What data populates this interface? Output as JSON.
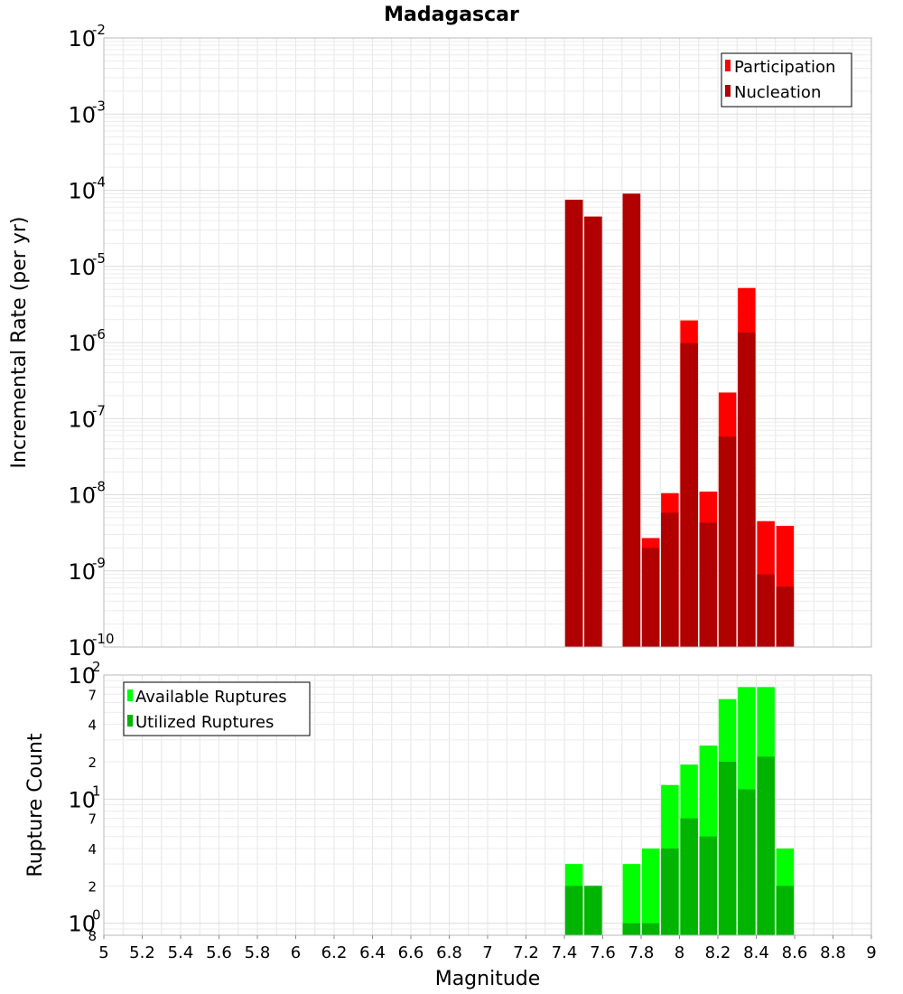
{
  "title": "Madagascar",
  "chart_data": [
    {
      "type": "bar",
      "panel": "top",
      "title": "Madagascar",
      "xlabel": "",
      "ylabel": "Incremental Rate (per yr)",
      "yscale": "log",
      "ylim": [
        1e-10,
        0.01
      ],
      "xlim": [
        5,
        9
      ],
      "y_ticks": [
        {
          "base": "10",
          "exp": "-10",
          "value": 1e-10
        },
        {
          "base": "10",
          "exp": "-9",
          "value": 1e-09
        },
        {
          "base": "10",
          "exp": "-8",
          "value": 1e-08
        },
        {
          "base": "10",
          "exp": "-7",
          "value": 1e-07
        },
        {
          "base": "10",
          "exp": "-6",
          "value": 1e-06
        },
        {
          "base": "10",
          "exp": "-5",
          "value": 1e-05
        },
        {
          "base": "10",
          "exp": "-4",
          "value": 0.0001
        },
        {
          "base": "10",
          "exp": "-3",
          "value": 0.001
        },
        {
          "base": "10",
          "exp": "-2",
          "value": 0.01
        }
      ],
      "grid": true,
      "legend_position": "top-right",
      "categories": [
        7.45,
        7.55,
        7.75,
        7.85,
        7.95,
        8.05,
        8.15,
        8.25,
        8.35,
        8.45,
        8.55
      ],
      "series": [
        {
          "name": "Participation",
          "color": "#ff0000",
          "values": [
            7.5e-05,
            4.5e-05,
            9e-05,
            2.7e-09,
            1.05e-08,
            1.95e-06,
            1.1e-08,
            2.2e-07,
            5.2e-06,
            4.5e-09,
            3.9e-09
          ]
        },
        {
          "name": "Nucleation",
          "color": "#b00000",
          "values": [
            7.5e-05,
            4.5e-05,
            9e-05,
            2e-09,
            5.8e-09,
            9.8e-07,
            4.3e-09,
            5.8e-08,
            1.35e-06,
            9e-10,
            6.2e-10
          ]
        }
      ]
    },
    {
      "type": "bar",
      "panel": "bottom",
      "xlabel": "Magnitude",
      "ylabel": "Rupture Count",
      "yscale": "log",
      "ylim": [
        0.8,
        100
      ],
      "xlim": [
        5,
        9
      ],
      "y_ticks": [
        {
          "base": "10",
          "exp": "2",
          "value": 100
        },
        {
          "base": "10",
          "exp": "1",
          "value": 10
        },
        {
          "base": "10",
          "exp": "0",
          "value": 1
        }
      ],
      "y_minor_ticks": [
        {
          "label": "7",
          "value": 70
        },
        {
          "label": "4",
          "value": 40
        },
        {
          "label": "2",
          "value": 20
        },
        {
          "label": "7",
          "value": 7
        },
        {
          "label": "4",
          "value": 4
        },
        {
          "label": "2",
          "value": 2
        },
        {
          "label": "8",
          "value": 0.8
        }
      ],
      "x_ticks": [
        "5",
        "5.2",
        "5.4",
        "5.6",
        "5.8",
        "6",
        "6.2",
        "6.4",
        "6.6",
        "6.8",
        "7",
        "7.2",
        "7.4",
        "7.6",
        "7.8",
        "8",
        "8.2",
        "8.4",
        "8.6",
        "8.8",
        "9"
      ],
      "grid": true,
      "legend_position": "top-left",
      "categories": [
        7.45,
        7.55,
        7.75,
        7.85,
        7.95,
        8.05,
        8.15,
        8.25,
        8.35,
        8.45,
        8.55
      ],
      "series": [
        {
          "name": "Available Ruptures",
          "color": "#00ff00",
          "values": [
            3,
            2,
            3,
            4,
            13,
            19,
            27,
            64,
            80,
            80,
            4
          ]
        },
        {
          "name": "Utilized Ruptures",
          "color": "#00b400",
          "values": [
            2,
            2,
            1,
            1,
            4,
            7,
            5,
            20,
            12,
            22,
            2
          ]
        }
      ]
    }
  ]
}
